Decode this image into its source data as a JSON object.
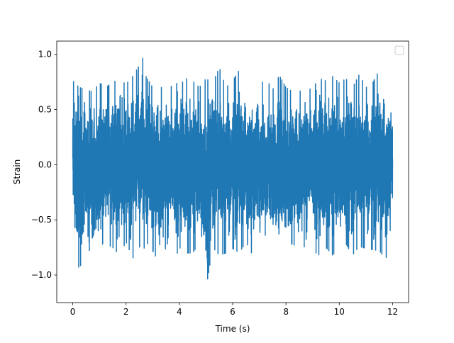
{
  "chart_data": {
    "type": "line",
    "title": "",
    "xlabel": "Time (s)",
    "ylabel": "Strain",
    "xlim": [
      -0.6,
      12.6
    ],
    "ylim": [
      -1.25,
      1.12
    ],
    "xticks": [
      0,
      2,
      4,
      6,
      8,
      10,
      12
    ],
    "xtick_labels": [
      "0",
      "2",
      "4",
      "6",
      "8",
      "10",
      "12"
    ],
    "yticks": [
      -1.0,
      -0.5,
      0.0,
      0.5,
      1.0
    ],
    "ytick_labels": [
      "−1.0",
      "−0.5",
      "0.0",
      "0.5",
      "1.0"
    ],
    "legend": {
      "placement": "top-right",
      "entries": []
    },
    "grid": false,
    "series": [
      {
        "color": "#1f77b4",
        "x_range": [
          0,
          12
        ],
        "y_range": [
          -1.13,
          1.0
        ],
        "x": [
          0.0,
          0.25,
          0.5,
          0.75,
          1.0,
          1.25,
          1.5,
          1.75,
          2.0,
          2.25,
          2.5,
          2.6,
          2.75,
          3.0,
          3.25,
          3.5,
          3.75,
          4.0,
          4.25,
          4.5,
          4.75,
          5.0,
          5.25,
          5.5,
          5.75,
          6.0,
          6.25,
          6.5,
          6.75,
          7.0,
          7.25,
          7.5,
          7.75,
          8.0,
          8.25,
          8.5,
          8.75,
          9.0,
          9.25,
          9.5,
          9.75,
          10.0,
          10.25,
          10.5,
          10.75,
          11.0,
          11.25,
          11.5,
          11.75,
          12.0
        ],
        "y_max": [
          0.76,
          0.7,
          0.68,
          0.66,
          0.74,
          0.7,
          0.75,
          0.77,
          0.73,
          0.8,
          0.9,
          1.0,
          0.8,
          0.7,
          0.8,
          0.74,
          0.76,
          0.72,
          0.78,
          0.76,
          0.7,
          0.78,
          0.74,
          0.88,
          0.7,
          0.76,
          0.86,
          0.68,
          0.74,
          0.72,
          0.78,
          0.68,
          0.81,
          0.7,
          0.66,
          0.74,
          0.77,
          0.7,
          0.78,
          0.76,
          0.8,
          0.74,
          0.78,
          0.7,
          0.82,
          0.7,
          0.74,
          0.86,
          0.71,
          0.64
        ],
        "y_min": [
          -0.66,
          -0.96,
          -0.7,
          -0.86,
          -0.72,
          -0.72,
          -0.75,
          -0.82,
          -0.7,
          -0.85,
          -0.74,
          -0.82,
          -0.7,
          -0.78,
          -0.9,
          -0.75,
          -0.92,
          -0.75,
          -0.8,
          -0.8,
          -0.72,
          -1.13,
          -0.75,
          -0.82,
          -0.8,
          -0.76,
          -0.8,
          -0.7,
          -0.82,
          -0.72,
          -0.78,
          -0.72,
          -0.88,
          -0.72,
          -0.72,
          -0.76,
          -0.74,
          -0.78,
          -0.82,
          -0.75,
          -0.82,
          -0.76,
          -0.72,
          -0.82,
          -0.74,
          -0.76,
          -0.77,
          -0.78,
          -0.86,
          -0.45
        ]
      }
    ]
  }
}
